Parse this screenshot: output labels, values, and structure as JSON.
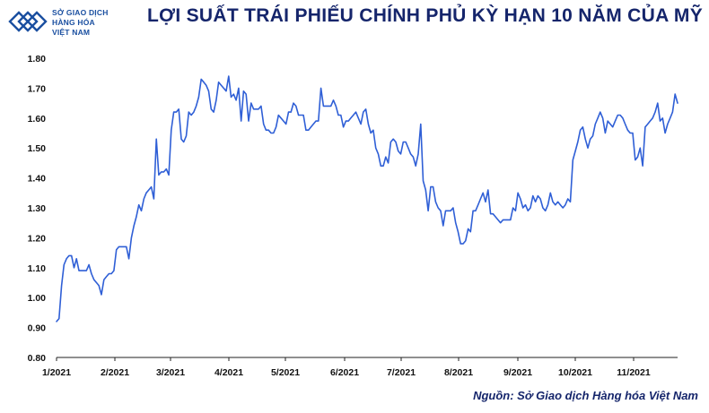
{
  "header": {
    "logo_lines": [
      "SỞ GIAO DỊCH",
      "HÀNG HÓA",
      "VIỆT NAM"
    ],
    "title": "LỢI SUẤT TRÁI PHIẾU CHÍNH PHỦ KỲ HẠN 10 NĂM CỦA MỸ",
    "brand_color": "#15256b",
    "logo_color": "#1a4fa0"
  },
  "footer": {
    "source": "Nguồn: Sở Giao dịch Hàng hóa Việt Nam"
  },
  "chart_data": {
    "type": "line",
    "title": "LỢI SUẤT TRÁI PHIẾU CHÍNH PHỦ KỲ HẠN 10 NĂM CỦA MỸ",
    "xlabel": "",
    "ylabel": "",
    "ylim": [
      0.8,
      1.8
    ],
    "yticks": [
      "0.80",
      "0.90",
      "1.00",
      "1.10",
      "1.20",
      "1.30",
      "1.40",
      "1.50",
      "1.60",
      "1.70",
      "1.80"
    ],
    "xticks": [
      "1/2021",
      "2/2021",
      "3/2021",
      "4/2021",
      "5/2021",
      "6/2021",
      "7/2021",
      "8/2021",
      "9/2021",
      "10/2021",
      "11/2021"
    ],
    "grid": false,
    "line_color": "#2f5fd6",
    "series": [
      {
        "values": [
          0.92,
          0.93,
          1.04,
          1.11,
          1.13,
          1.14,
          1.14,
          1.1,
          1.13,
          1.09,
          1.09,
          1.09,
          1.09,
          1.11,
          1.08,
          1.06,
          1.05,
          1.04,
          1.01,
          1.06,
          1.07,
          1.08,
          1.08,
          1.09,
          1.16,
          1.17,
          1.17,
          1.17,
          1.17,
          1.13,
          1.2,
          1.24,
          1.27,
          1.31,
          1.29,
          1.33,
          1.35,
          1.36,
          1.37,
          1.33,
          1.53,
          1.41,
          1.42,
          1.42,
          1.43,
          1.41,
          1.56,
          1.62,
          1.62,
          1.63,
          1.53,
          1.52,
          1.54,
          1.62,
          1.61,
          1.62,
          1.64,
          1.67,
          1.73,
          1.72,
          1.71,
          1.69,
          1.63,
          1.62,
          1.66,
          1.72,
          1.71,
          1.7,
          1.69,
          1.74,
          1.67,
          1.68,
          1.66,
          1.7,
          1.59,
          1.69,
          1.68,
          1.59,
          1.65,
          1.63,
          1.63,
          1.63,
          1.64,
          1.58,
          1.56,
          1.56,
          1.55,
          1.55,
          1.57,
          1.61,
          1.6,
          1.59,
          1.58,
          1.62,
          1.62,
          1.65,
          1.64,
          1.61,
          1.61,
          1.61,
          1.56,
          1.56,
          1.57,
          1.58,
          1.59,
          1.59,
          1.7,
          1.64,
          1.64,
          1.64,
          1.64,
          1.66,
          1.64,
          1.61,
          1.61,
          1.57,
          1.59,
          1.59,
          1.6,
          1.61,
          1.62,
          1.6,
          1.58,
          1.62,
          1.63,
          1.58,
          1.55,
          1.56,
          1.5,
          1.48,
          1.44,
          1.44,
          1.47,
          1.45,
          1.52,
          1.53,
          1.52,
          1.49,
          1.48,
          1.52,
          1.52,
          1.5,
          1.48,
          1.47,
          1.44,
          1.48,
          1.58,
          1.39,
          1.36,
          1.29,
          1.37,
          1.37,
          1.32,
          1.3,
          1.29,
          1.24,
          1.29,
          1.29,
          1.29,
          1.3,
          1.25,
          1.22,
          1.18,
          1.18,
          1.19,
          1.23,
          1.22,
          1.29,
          1.29,
          1.31,
          1.33,
          1.35,
          1.32,
          1.36,
          1.28,
          1.28,
          1.27,
          1.26,
          1.25,
          1.26,
          1.26,
          1.26,
          1.26,
          1.3,
          1.29,
          1.35,
          1.33,
          1.3,
          1.31,
          1.29,
          1.3,
          1.34,
          1.32,
          1.34,
          1.33,
          1.3,
          1.29,
          1.31,
          1.35,
          1.32,
          1.31,
          1.32,
          1.31,
          1.3,
          1.31,
          1.33,
          1.32,
          1.46,
          1.49,
          1.52,
          1.56,
          1.57,
          1.53,
          1.5,
          1.53,
          1.54,
          1.58,
          1.6,
          1.62,
          1.6,
          1.55,
          1.59,
          1.58,
          1.57,
          1.59,
          1.61,
          1.61,
          1.6,
          1.58,
          1.56,
          1.55,
          1.55,
          1.46,
          1.47,
          1.5,
          1.44,
          1.57,
          1.58,
          1.59,
          1.6,
          1.62,
          1.65,
          1.59,
          1.6,
          1.55,
          1.58,
          1.6,
          1.62,
          1.68,
          1.65
        ]
      }
    ]
  }
}
